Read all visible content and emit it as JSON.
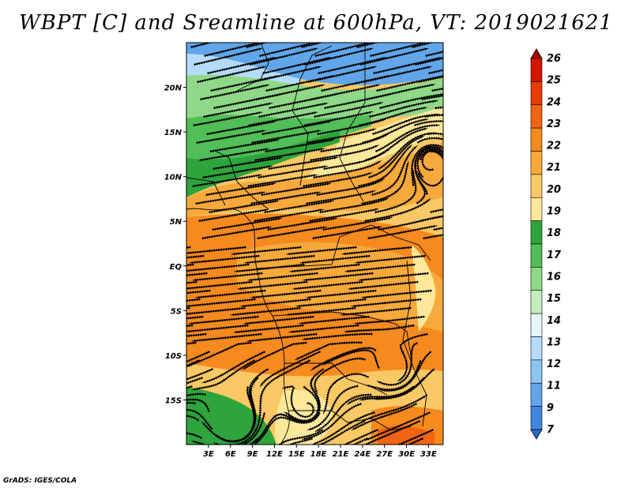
{
  "title": "WBPT [C] and Sreamline at 600hPa, VT: 2019021621",
  "credit": "GrADS: IGES/COLA",
  "map": {
    "lon_range": [
      0,
      35
    ],
    "lat_range": [
      -20,
      25
    ],
    "x_ticks": [
      "3E",
      "6E",
      "9E",
      "12E",
      "15E",
      "18E",
      "21E",
      "24E",
      "27E",
      "30E",
      "33E"
    ],
    "y_ticks": [
      "20N",
      "15N",
      "10N",
      "5N",
      "EQ",
      "5S",
      "10S",
      "15S"
    ]
  },
  "colorbar": {
    "labels": [
      "26",
      "25",
      "24",
      "23",
      "22",
      "21",
      "20",
      "19",
      "18",
      "17",
      "16",
      "15",
      "14",
      "13",
      "12",
      "11",
      "9",
      "7"
    ],
    "colors": [
      "#a50000",
      "#d21400",
      "#e63c00",
      "#f06414",
      "#f58a1e",
      "#f7a93b",
      "#fac864",
      "#fde89a",
      "#2ea43c",
      "#52be58",
      "#8fd888",
      "#c4ecbc",
      "#e6f6f8",
      "#b4dcfa",
      "#8cc4f2",
      "#62a6ea",
      "#3f86de",
      "#2a6cd4"
    ]
  }
}
